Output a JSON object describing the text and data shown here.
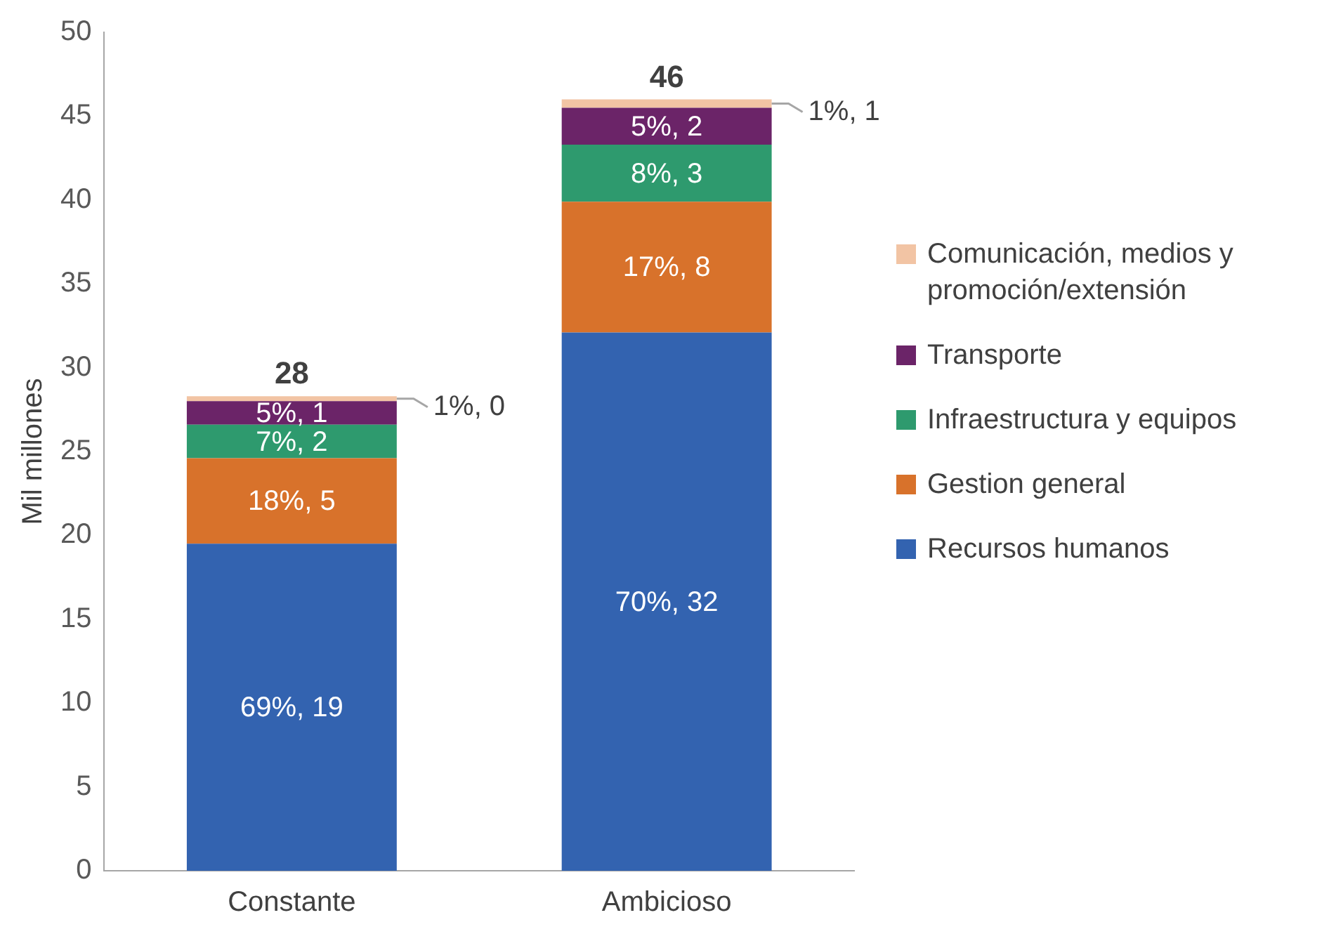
{
  "chart_data": {
    "type": "bar",
    "stacked": true,
    "ylabel": "Mil millones",
    "categories": [
      "Constante",
      "Ambicioso"
    ],
    "series": [
      {
        "name": "Recursos humanos",
        "color": "#3363b0",
        "values": [
          19.5,
          32.1
        ],
        "value_labels": [
          "69%, 19",
          "70%, 32"
        ]
      },
      {
        "name": "Gestion general",
        "color": "#d8722b",
        "values": [
          5.1,
          7.8
        ],
        "value_labels": [
          "18%, 5",
          "17%, 8"
        ]
      },
      {
        "name": "Infraestructura y equipos",
        "color": "#2e9a6e",
        "values": [
          2.0,
          3.4
        ],
        "value_labels": [
          "7%, 2",
          "8%, 3"
        ]
      },
      {
        "name": "Transporte",
        "color": "#6b2468",
        "values": [
          1.4,
          2.2
        ],
        "value_labels": [
          "5%, 1",
          "5%, 2"
        ]
      },
      {
        "name": "Comunicación, medios y promoción/extensión",
        "color": "#f2c4a4",
        "values": [
          0.3,
          0.5
        ],
        "value_labels": [
          "1%, 0",
          "1%, 1"
        ]
      }
    ],
    "totals": [
      "28",
      "46"
    ],
    "ylim": [
      0,
      50
    ],
    "yticks": [
      0,
      5,
      10,
      15,
      20,
      25,
      30,
      35,
      40,
      45,
      50
    ],
    "grid": false,
    "legend": "right"
  }
}
